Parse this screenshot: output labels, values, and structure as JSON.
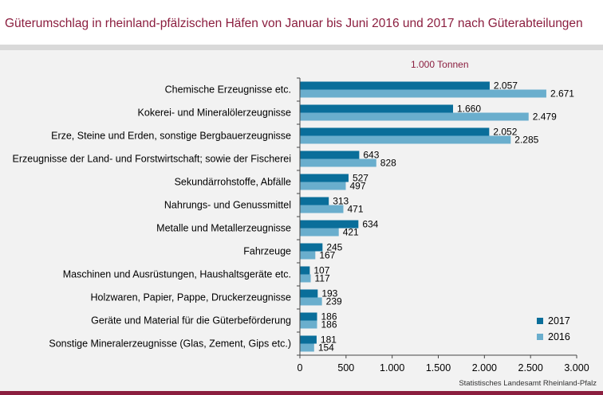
{
  "title": "Güterumschlag in rheinland-pfälzischen Häfen von Januar bis Juni 2016 und 2017 nach Güterabteilungen",
  "source": "Statistisches Landesamt Rheinland-Pfalz",
  "colors": {
    "title": "#8b1e3f",
    "series_2017": "#0a6e9a",
    "series_2016": "#6aaecd",
    "background": "#f2f2f2",
    "accent_bar": "#8b1e3f"
  },
  "chart_data": {
    "type": "bar",
    "orientation": "horizontal",
    "unit_label": "1.000 Tonnen",
    "categories": [
      "Chemische Erzeugnisse etc.",
      "Kokerei- und Mineralölerzeugnisse",
      "Erze, Steine und Erden, sonstige Bergbauerzeugnisse",
      "Erzeugnisse der Land- und Forstwirtschaft; sowie der Fischerei",
      "Sekundärrohstoffe, Abfälle",
      "Nahrungs- und Genussmittel",
      "Metalle und Metallerzeugnisse",
      "Fahrzeuge",
      "Maschinen und Ausrüstungen, Haushaltsgeräte etc.",
      "Holzwaren, Papier, Pappe, Druckerzeugnisse",
      "Geräte und Material für die Güterbeförderung",
      "Sonstige Mineralerzeugnisse (Glas, Zement, Gips etc.)"
    ],
    "series": [
      {
        "name": "2017",
        "values": [
          2057,
          1660,
          2052,
          643,
          527,
          313,
          634,
          245,
          107,
          193,
          186,
          181
        ],
        "labels": [
          "2.057",
          "1.660",
          "2.052",
          "643",
          "527",
          "313",
          "634",
          "245",
          "107",
          "193",
          "186",
          "181"
        ]
      },
      {
        "name": "2016",
        "values": [
          2671,
          2479,
          2285,
          828,
          497,
          471,
          421,
          167,
          117,
          239,
          186,
          154
        ],
        "labels": [
          "2.671",
          "2.479",
          "2.285",
          "828",
          "497",
          "471",
          "421",
          "167",
          "117",
          "239",
          "186",
          "154"
        ]
      }
    ],
    "xlim": [
      0,
      3000
    ],
    "xticks": [
      0,
      500,
      1000,
      1500,
      2000,
      2500,
      3000
    ],
    "xtick_labels": [
      "0",
      "500",
      "1.000",
      "1.500",
      "2.000",
      "2.500",
      "3.000"
    ],
    "legend_position": "bottom-right",
    "grid": false
  }
}
